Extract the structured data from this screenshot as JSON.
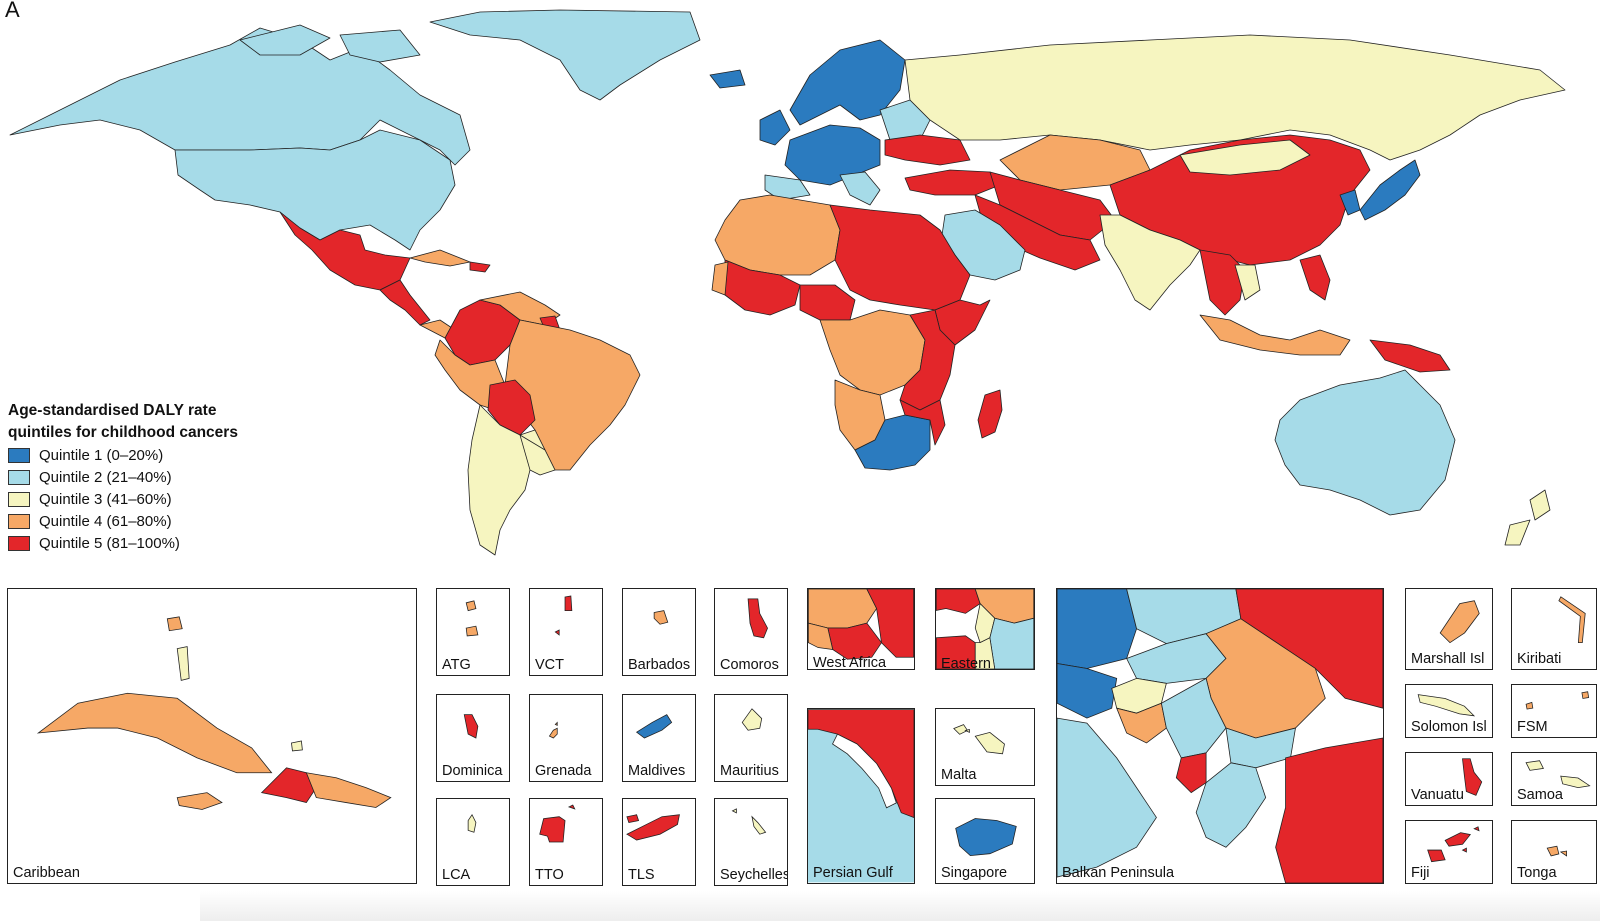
{
  "figure": {
    "panel_letter": "A"
  },
  "legend": {
    "title_line1": "Age-standardised DALY rate",
    "title_line2": "quintiles for childhood cancers",
    "items": [
      {
        "label": "Quintile 1 (0–20%)",
        "color": "#2b7bbf"
      },
      {
        "label": "Quintile 2 (21–40%)",
        "color": "#a6dbe8"
      },
      {
        "label": "Quintile 3 (41–60%)",
        "color": "#f6f5c0"
      },
      {
        "label": "Quintile 4 (61–80%)",
        "color": "#f6a866"
      },
      {
        "label": "Quintile 5 (81–100%)",
        "color": "#e3262a"
      }
    ]
  },
  "insets": [
    {
      "label": "Caribbean"
    },
    {
      "label": "ATG"
    },
    {
      "label": "VCT"
    },
    {
      "label": "Barbados"
    },
    {
      "label": "Comoros"
    },
    {
      "label": "West Africa"
    },
    {
      "label": "Eastern Mediterranean"
    },
    {
      "label": "Dominica"
    },
    {
      "label": "Grenada"
    },
    {
      "label": "Maldives"
    },
    {
      "label": "Mauritius"
    },
    {
      "label": "Persian Gulf"
    },
    {
      "label": "Malta"
    },
    {
      "label": "LCA"
    },
    {
      "label": "TTO"
    },
    {
      "label": "TLS"
    },
    {
      "label": "Seychelles"
    },
    {
      "label": "Singapore"
    },
    {
      "label": "Balkan Peninsula"
    },
    {
      "label": "Marshall Isl"
    },
    {
      "label": "Kiribati"
    },
    {
      "label": "Solomon Isl"
    },
    {
      "label": "FSM"
    },
    {
      "label": "Vanuatu"
    },
    {
      "label": "Samoa"
    },
    {
      "label": "Fiji"
    },
    {
      "label": "Tonga"
    }
  ]
}
